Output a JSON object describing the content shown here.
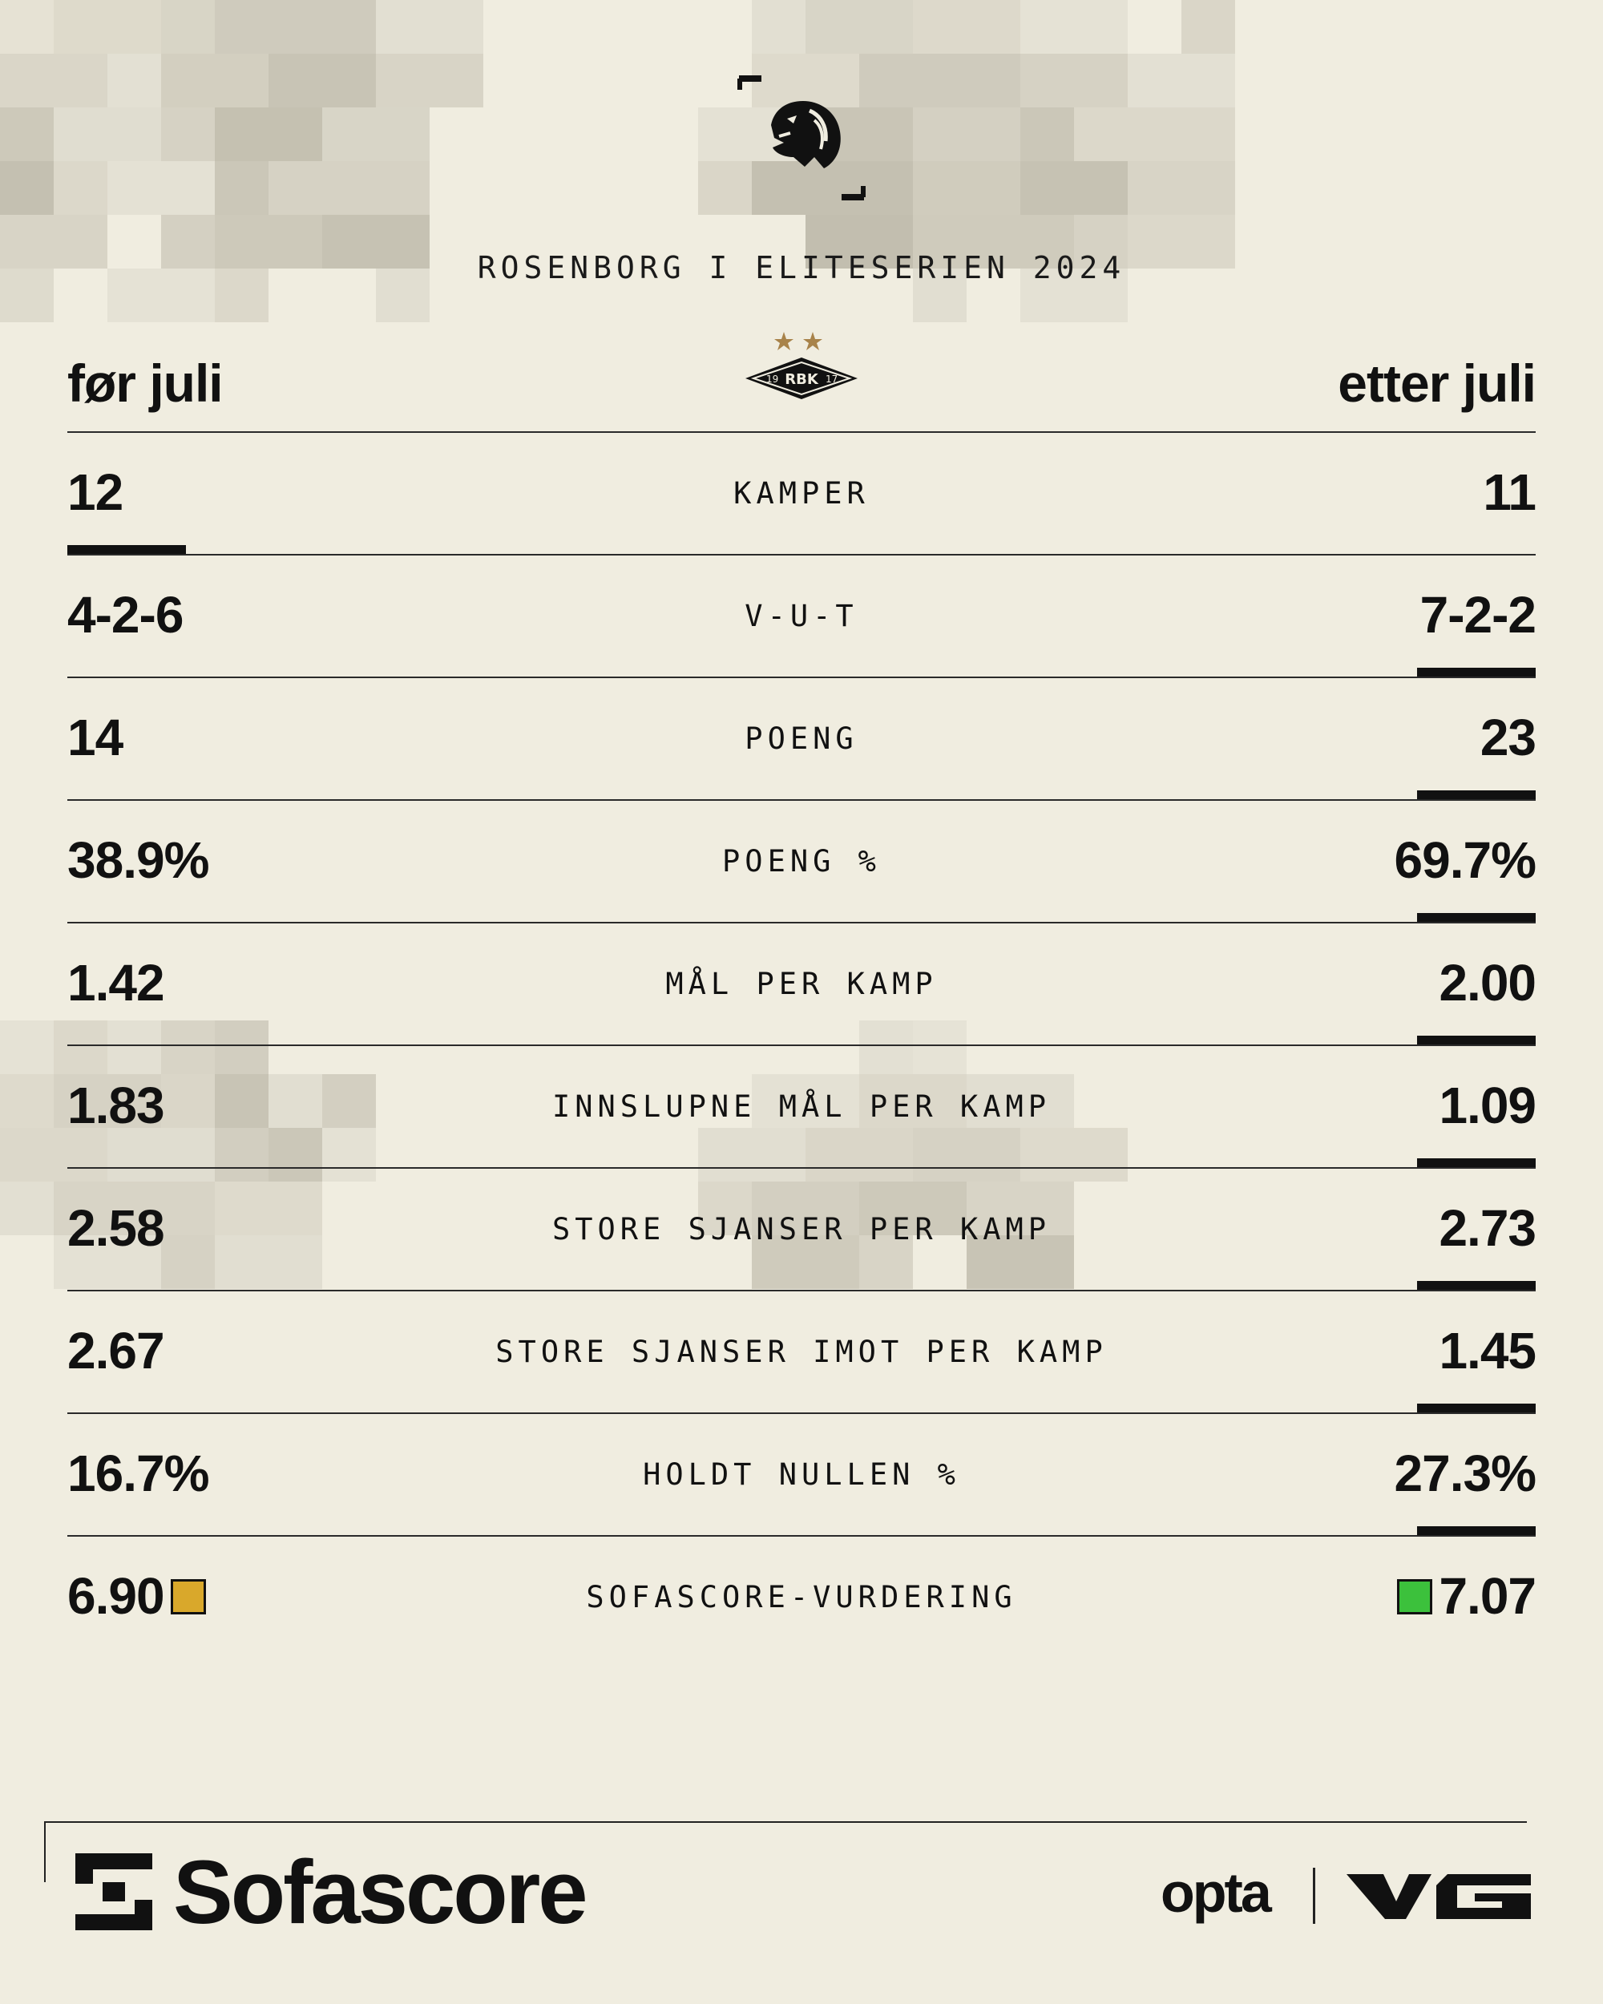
{
  "header": {
    "subtitle": "ROSENBORG I ELITESERIEN 2024",
    "left_heading": "før juli",
    "right_heading": "etter juli"
  },
  "icons": {
    "top_logo": "lion-head-icon",
    "club_crest": "rbk-crest-icon",
    "sofascore_logo": "sofascore-logo-icon",
    "vg_logo": "vg-logo-icon"
  },
  "crest": {
    "text": "RBK",
    "left_num": "19",
    "right_num": "17",
    "star_color": "#a8834a"
  },
  "stats": [
    {
      "label": "KAMPER",
      "before": "12",
      "after": "11",
      "winner": "left"
    },
    {
      "label": "V-U-T",
      "before": "4-2-6",
      "after": "7-2-2",
      "winner": "right"
    },
    {
      "label": "POENG",
      "before": "14",
      "after": "23",
      "winner": "right"
    },
    {
      "label": "POENG %",
      "before": "38.9%",
      "after": "69.7%",
      "winner": "right"
    },
    {
      "label": "MÅL PER KAMP",
      "before": "1.42",
      "after": "2.00",
      "winner": "right"
    },
    {
      "label": "INNSLUPNE MÅL PER KAMP",
      "before": "1.83",
      "after": "1.09",
      "winner": "right"
    },
    {
      "label": "STORE SJANSER PER KAMP",
      "before": "2.58",
      "after": "2.73",
      "winner": "right"
    },
    {
      "label": "STORE SJANSER IMOT PER KAMP",
      "before": "2.67",
      "after": "1.45",
      "winner": "right"
    },
    {
      "label": "HOLDT NULLEN %",
      "before": "16.7%",
      "after": "27.3%",
      "winner": "right"
    }
  ],
  "rating": {
    "label": "SOFASCORE-VURDERING",
    "before": "6.90",
    "after": "7.07",
    "before_color": "#d9a82b",
    "after_color": "#3cc13c"
  },
  "footer": {
    "brand": "Sofascore",
    "partner": "opta"
  }
}
